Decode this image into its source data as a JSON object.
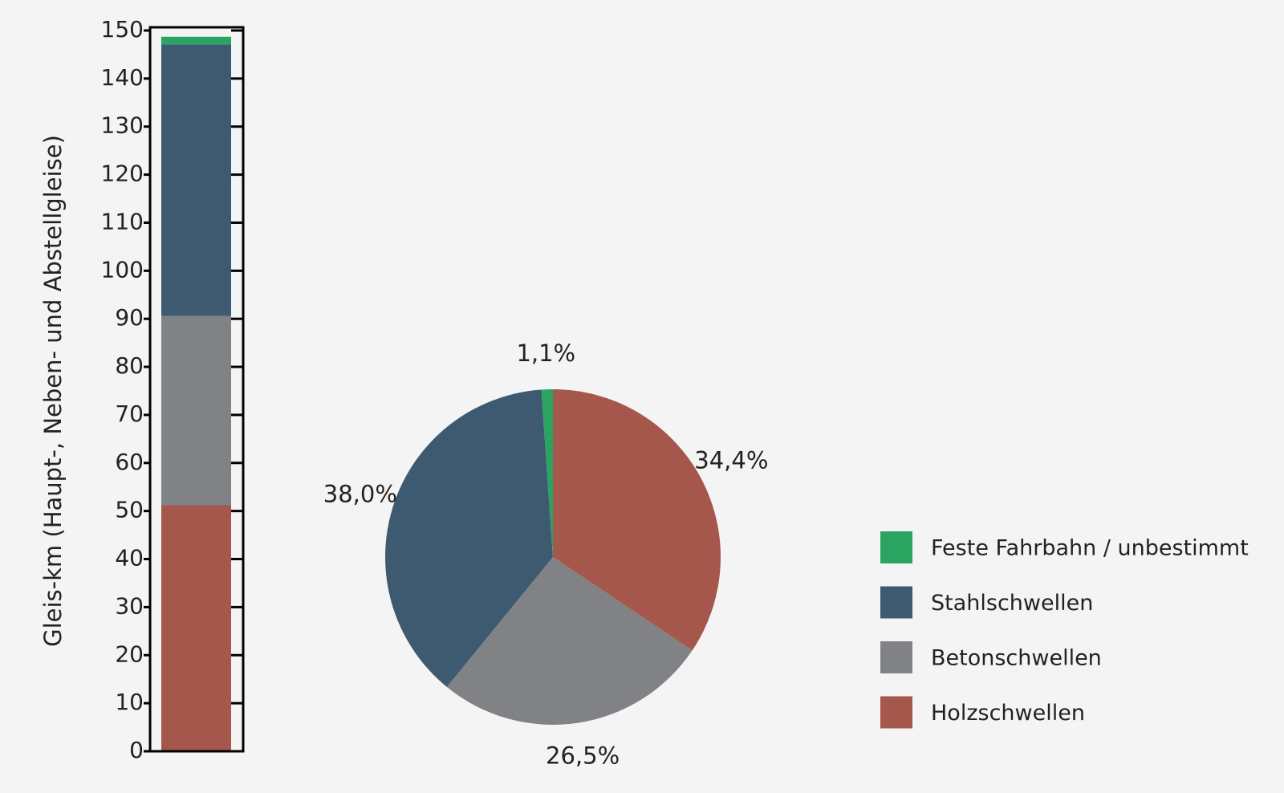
{
  "chart_data": [
    {
      "type": "stacked-bar",
      "y_label": "Gleis-km (Haupt-, Neben- und Abstellgleise)",
      "ylim": [
        0,
        150
      ],
      "yticks": [
        0,
        10,
        20,
        30,
        40,
        50,
        60,
        70,
        80,
        90,
        100,
        110,
        120,
        130,
        140,
        150
      ],
      "series": [
        {
          "name": "Holzschwellen",
          "color": "#a5574c",
          "values": [
            51.2
          ]
        },
        {
          "name": "Betonschwellen",
          "color": "#818285",
          "values": [
            39.4
          ]
        },
        {
          "name": "Stahlschwellen",
          "color": "#3d5a70",
          "values": [
            56.5
          ]
        },
        {
          "name": "Feste Fahrbahn / unbestimmt",
          "color": "#2ba462",
          "values": [
            1.6
          ]
        }
      ]
    },
    {
      "type": "pie",
      "values": [
        34.4,
        26.5,
        38.0,
        1.1
      ],
      "value_labels": [
        "34,4%",
        "26,5%",
        "38,0%",
        "1,1%"
      ],
      "colors": [
        "#a5574c",
        "#818285",
        "#3d5a70",
        "#2ba462"
      ]
    }
  ]
}
